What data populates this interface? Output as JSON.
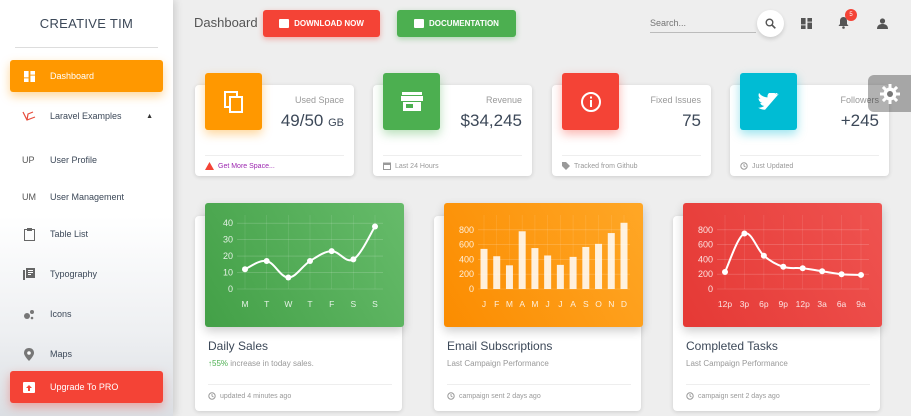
{
  "sidebar": {
    "brand": "CREATIVE TIM",
    "items": [
      {
        "label": "Dashboard",
        "icon": "dashboard-icon"
      },
      {
        "label": "Laravel Examples",
        "icon": "laravel-icon"
      },
      {
        "label": "User Profile",
        "abbr": "UP"
      },
      {
        "label": "User Management",
        "abbr": "UM"
      },
      {
        "label": "Table List",
        "icon": "clipboard-icon"
      },
      {
        "label": "Typography",
        "icon": "library-books-icon"
      },
      {
        "label": "Icons",
        "icon": "bubble-icon"
      },
      {
        "label": "Maps",
        "icon": "location-icon"
      },
      {
        "label": "Upgrade To PRO",
        "icon": "unarchive-icon"
      }
    ]
  },
  "topbar": {
    "title": "Dashboard",
    "download_label": "DOWNLOAD NOW",
    "doc_label": "DOCUMENTATION",
    "search_placeholder": "Search...",
    "notifications_count": "5"
  },
  "stats": [
    {
      "category": "Used Space",
      "value": "49/50",
      "unit": "GB",
      "footer": "Get More Space...",
      "color": "#ff9800"
    },
    {
      "category": "Revenue",
      "value": "$34,245",
      "footer": "Last 24 Hours",
      "color": "#4caf50"
    },
    {
      "category": "Fixed Issues",
      "value": "75",
      "footer": "Tracked from Github",
      "color": "#f44336"
    },
    {
      "category": "Followers",
      "value": "+245",
      "footer": "Just Updated",
      "color": "#00bcd4"
    }
  ],
  "charts": [
    {
      "title": "Daily Sales",
      "percent": "55%",
      "category_text": " increase in today sales.",
      "footer": "updated 4 minutes ago"
    },
    {
      "title": "Email Subscriptions",
      "category_text": "Last Campaign Performance",
      "footer": "campaign sent 2 days ago"
    },
    {
      "title": "Completed Tasks",
      "category_text": "Last Campaign Performance",
      "footer": "campaign sent 2 days ago"
    }
  ],
  "chart_data": [
    {
      "type": "line",
      "categories": [
        "M",
        "T",
        "W",
        "T",
        "F",
        "S",
        "S"
      ],
      "values": [
        12,
        17,
        7,
        17,
        23,
        18,
        38
      ],
      "yticks": [
        0,
        10,
        20,
        30,
        40
      ],
      "ylim": [
        0,
        45
      ],
      "color": "#4caf50"
    },
    {
      "type": "bar",
      "categories": [
        "J",
        "F",
        "M",
        "A",
        "M",
        "J",
        "J",
        "A",
        "S",
        "O",
        "N",
        "D"
      ],
      "values": [
        542,
        443,
        320,
        780,
        553,
        453,
        326,
        434,
        568,
        610,
        756,
        895
      ],
      "yticks": [
        0,
        200,
        400,
        600,
        800
      ],
      "ylim": [
        0,
        1000
      ],
      "color": "#ff9800"
    },
    {
      "type": "line",
      "categories": [
        "12p",
        "3p",
        "6p",
        "9p",
        "12p",
        "3a",
        "6a",
        "9a"
      ],
      "values": [
        230,
        750,
        450,
        300,
        280,
        240,
        200,
        190
      ],
      "yticks": [
        0,
        200,
        400,
        600,
        800
      ],
      "ylim": [
        0,
        1000
      ],
      "color": "#f44336"
    }
  ]
}
